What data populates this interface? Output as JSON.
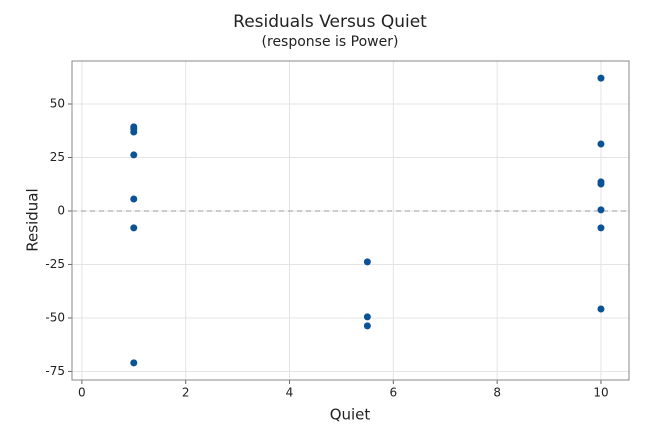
{
  "chart_data": {
    "type": "scatter",
    "title": "Residuals Versus Quiet",
    "subtitle": "(response is Power)",
    "xlabel": "Quiet",
    "ylabel": "Residual",
    "x": [
      1,
      1,
      1,
      1,
      1,
      1,
      1,
      5.5,
      5.5,
      5.5,
      10,
      10,
      10,
      10,
      10,
      10,
      10
    ],
    "values": [
      39.3,
      38.3,
      36.9,
      26.2,
      5.6,
      -7.9,
      -71.0,
      -23.8,
      -49.5,
      -53.7,
      62.1,
      31.3,
      13.6,
      12.6,
      0.5,
      -7.9,
      -45.8
    ],
    "color": "#0b5394",
    "xlim": [
      -0.19,
      10.54
    ],
    "ylim": [
      -79.0,
      70.1
    ],
    "xticks": [
      0,
      2,
      4,
      6,
      8,
      10
    ],
    "yticks": [
      -75,
      -50,
      -25,
      0,
      25,
      50
    ],
    "grid": true,
    "hline": 0
  }
}
